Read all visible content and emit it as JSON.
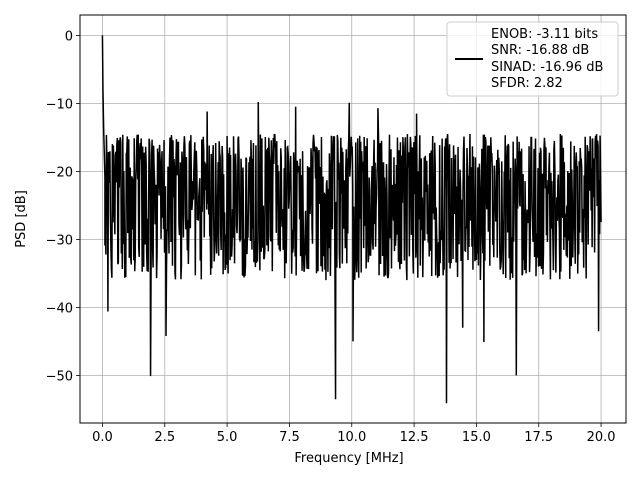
{
  "chart_data": {
    "type": "line",
    "title": "",
    "xlabel": "Frequency [MHz]",
    "ylabel": "PSD [dB]",
    "xlim": [
      -0.9,
      21.0
    ],
    "ylim": [
      -57.0,
      3.0
    ],
    "x_ticks": [
      0.0,
      2.5,
      5.0,
      7.5,
      10.0,
      12.5,
      15.0,
      17.5,
      20.0
    ],
    "x_tick_labels": [
      "0.0",
      "2.5",
      "5.0",
      "7.5",
      "10.0",
      "12.5",
      "15.0",
      "17.5",
      "20.0"
    ],
    "y_ticks": [
      0,
      -10,
      -20,
      -30,
      -40,
      -50
    ],
    "y_tick_labels": [
      "0",
      "−10",
      "−20",
      "−30",
      "−40",
      "−50"
    ],
    "grid": true,
    "legend_position": "top-right",
    "legend_lines": [
      "ENOB: -3.11 bits",
      "SNR: -16.88 dB",
      "SINAD: -16.96 dB",
      "SFDR: 2.82"
    ],
    "series": [
      {
        "color": "#000000",
        "x_range": [
          0.0,
          20.0
        ],
        "points_count": 1000,
        "dc_peak": {
          "x": 0.0,
          "y": 0.0
        },
        "near_dc": [
          {
            "x": 0.02,
            "y": -8.0
          },
          {
            "x": 0.05,
            "y": -14.0
          },
          {
            "x": 0.1,
            "y": -21.0
          }
        ],
        "noise_floor": {
          "median": -24.0,
          "upper_envelope": -14.5,
          "lower_envelope": -36.0
        },
        "notable_peaks": [
          {
            "x": 6.25,
            "y": -9.8
          },
          {
            "x": 9.9,
            "y": -9.9
          },
          {
            "x": 7.75,
            "y": -10.5
          },
          {
            "x": 11.05,
            "y": -10.7
          },
          {
            "x": 4.2,
            "y": -11.2
          },
          {
            "x": 12.6,
            "y": -11.5
          }
        ],
        "notable_dips": [
          {
            "x": 0.22,
            "y": -40.6
          },
          {
            "x": 1.93,
            "y": -50.1
          },
          {
            "x": 2.55,
            "y": -44.2
          },
          {
            "x": 9.35,
            "y": -53.5
          },
          {
            "x": 10.05,
            "y": -45.0
          },
          {
            "x": 13.8,
            "y": -54.1
          },
          {
            "x": 14.45,
            "y": -43.0
          },
          {
            "x": 15.3,
            "y": -45.1
          },
          {
            "x": 16.6,
            "y": -50.0
          },
          {
            "x": 19.9,
            "y": -43.5
          }
        ]
      }
    ]
  }
}
